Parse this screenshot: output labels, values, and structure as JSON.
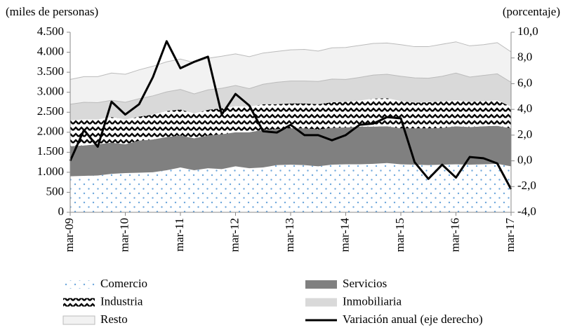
{
  "chart_data": {
    "type": "stacked-area-line",
    "y_label": "(miles de personas)",
    "y2_label": "(porcentaje)",
    "categories": [
      "mar-09",
      null,
      null,
      null,
      "mar-10",
      null,
      null,
      null,
      "mar-11",
      null,
      null,
      null,
      "mar-12",
      null,
      null,
      null,
      "mar-13",
      null,
      null,
      null,
      "mar-14",
      null,
      null,
      null,
      "mar-15",
      null,
      null,
      null,
      "mar-16",
      null,
      null,
      null,
      "mar-17"
    ],
    "ylim": [
      0,
      4500
    ],
    "yticks": [
      0,
      500,
      {
        "value": 1000,
        "label": "1.000"
      },
      {
        "value": 1500,
        "label": "1.500"
      },
      {
        "value": 2000,
        "label": "2.000"
      },
      {
        "value": 2500,
        "label": "2.500"
      },
      {
        "value": 3000,
        "label": "3.000"
      },
      {
        "value": 3500,
        "label": "3.500"
      },
      {
        "value": 4000,
        "label": "4.000"
      },
      {
        "value": 4500,
        "label": "4.500"
      }
    ],
    "y2lim": [
      -4,
      10
    ],
    "y2ticks": [
      {
        "value": -4,
        "label": "-4,0"
      },
      {
        "value": -2,
        "label": "-2,0"
      },
      {
        "value": 0,
        "label": "0,0"
      },
      {
        "value": 2,
        "label": "2,0"
      },
      {
        "value": 4,
        "label": "4,0"
      },
      {
        "value": 6,
        "label": "6,0"
      },
      {
        "value": 8,
        "label": "8,0"
      },
      {
        "value": 10,
        "label": "10,0"
      }
    ],
    "series": [
      {
        "name": "Comercio",
        "color": "#6fa8dc",
        "pattern": "dots",
        "values": [
          900,
          910,
          920,
          960,
          980,
          990,
          1000,
          1050,
          1120,
          1050,
          1100,
          1080,
          1150,
          1100,
          1120,
          1180,
          1190,
          1180,
          1150,
          1190,
          1200,
          1200,
          1210,
          1230,
          1200,
          1190,
          1180,
          1190,
          1200,
          1190,
          1200,
          1210,
          1150
        ]
      },
      {
        "name": "Servicios",
        "color": "#808080",
        "pattern": "solid",
        "values": [
          750,
          760,
          780,
          780,
          720,
          800,
          820,
          830,
          800,
          800,
          820,
          870,
          850,
          900,
          940,
          900,
          910,
          920,
          920,
          920,
          920,
          940,
          930,
          920,
          900,
          910,
          920,
          920,
          950,
          940,
          950,
          950,
          950
        ]
      },
      {
        "name": "Industria",
        "color": "#000000",
        "pattern": "zigzag",
        "values": [
          650,
          650,
          620,
          640,
          620,
          600,
          620,
          650,
          650,
          620,
          640,
          650,
          650,
          640,
          640,
          620,
          620,
          620,
          630,
          640,
          640,
          650,
          700,
          700,
          680,
          640,
          650,
          660,
          650,
          630,
          630,
          640,
          540
        ]
      },
      {
        "name": "Inmobiliaria",
        "color": "#d9d9d9",
        "pattern": "solid",
        "values": [
          400,
          430,
          420,
          420,
          430,
          450,
          470,
          480,
          500,
          490,
          500,
          500,
          520,
          450,
          500,
          550,
          560,
          560,
          570,
          580,
          560,
          580,
          590,
          600,
          620,
          620,
          600,
          630,
          680,
          620,
          640,
          660,
          610
        ]
      },
      {
        "name": "Resto",
        "color": "#f2f2f2",
        "pattern": "solid",
        "values": [
          620,
          640,
          650,
          680,
          700,
          720,
          740,
          750,
          760,
          780,
          790,
          800,
          790,
          800,
          780,
          770,
          780,
          790,
          760,
          780,
          800,
          800,
          790,
          780,
          790,
          780,
          790,
          800,
          780,
          780,
          770,
          780,
          760
        ]
      },
      {
        "name": "Variación anual (eje derecho)",
        "color": "#000000",
        "type": "line",
        "axis": "y2",
        "values": [
          0.0,
          2.4,
          1.1,
          4.6,
          3.6,
          4.4,
          6.5,
          9.3,
          7.2,
          7.7,
          8.1,
          3.6,
          5.2,
          4.3,
          2.3,
          2.2,
          2.8,
          2.0,
          2.0,
          1.6,
          2.0,
          2.8,
          2.9,
          3.4,
          3.3,
          -0.1,
          -1.4,
          -0.3,
          -1.3,
          0.3,
          0.2,
          -0.2,
          -2.2
        ]
      }
    ]
  }
}
